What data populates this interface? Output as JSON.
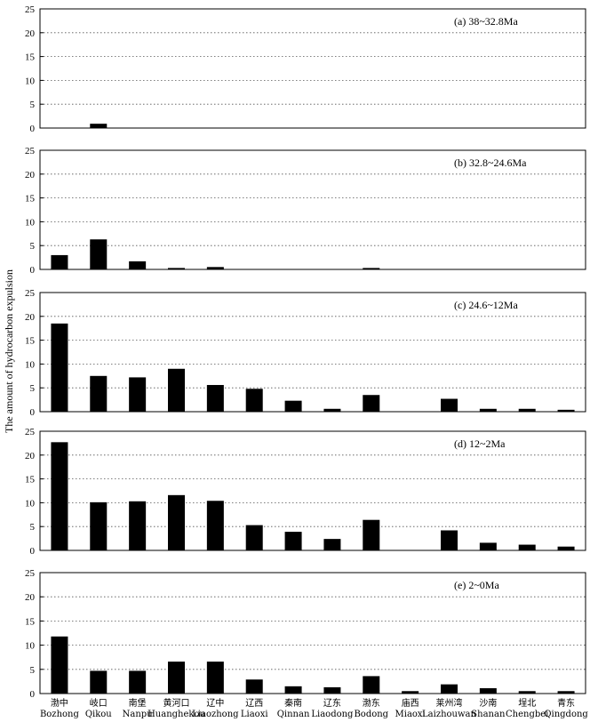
{
  "chart_data": {
    "type": "bar",
    "ylabel": "The amount of hydrocarbon expulsion",
    "ylim": [
      0,
      25
    ],
    "yticks": [
      "0",
      "5",
      "10",
      "15",
      "20",
      "25"
    ],
    "grid": "horizontal dotted",
    "categories": [
      {
        "cn": "渤中",
        "en": "Bozhong"
      },
      {
        "cn": "岐口",
        "en": "Qikou"
      },
      {
        "cn": "南堡",
        "en": "Nanpu"
      },
      {
        "cn": "黄河口",
        "en": "Huanghekou"
      },
      {
        "cn": "辽中",
        "en": "Liaozhong"
      },
      {
        "cn": "辽西",
        "en": "Liaoxi"
      },
      {
        "cn": "秦南",
        "en": "Qinnan"
      },
      {
        "cn": "辽东",
        "en": "Liaodong"
      },
      {
        "cn": "渤东",
        "en": "Bodong"
      },
      {
        "cn": "庙西",
        "en": "Miaoxi"
      },
      {
        "cn": "莱州湾",
        "en": "Laizhouwan"
      },
      {
        "cn": "沙南",
        "en": "Shanan"
      },
      {
        "cn": "埕北",
        "en": "Chengbei"
      },
      {
        "cn": "青东",
        "en": "Qingdong"
      }
    ],
    "panels": [
      {
        "label": "(a) 38~32.8Ma",
        "values": [
          0,
          0.9,
          0,
          0,
          0,
          0,
          0,
          0,
          0,
          0,
          0,
          0,
          0,
          0
        ]
      },
      {
        "label": "(b) 32.8~24.6Ma",
        "values": [
          3.0,
          6.3,
          1.7,
          0.3,
          0.5,
          0,
          0,
          0,
          0.3,
          0,
          0,
          0,
          0,
          0
        ]
      },
      {
        "label": "(c) 24.6~12Ma",
        "values": [
          18.5,
          7.5,
          7.2,
          9.0,
          5.6,
          4.8,
          2.3,
          0.6,
          3.5,
          0,
          2.7,
          0.6,
          0.6,
          0.4
        ]
      },
      {
        "label": "(d) 12~2Ma",
        "values": [
          22.7,
          10.1,
          10.3,
          11.6,
          10.4,
          5.3,
          3.9,
          2.4,
          6.4,
          0,
          4.2,
          1.6,
          1.2,
          0.8
        ]
      },
      {
        "label": "(e) 2~0Ma",
        "values": [
          11.8,
          4.7,
          4.7,
          6.6,
          6.6,
          2.9,
          1.5,
          1.3,
          3.6,
          0.5,
          1.9,
          1.1,
          0.5,
          0.5
        ]
      }
    ]
  }
}
